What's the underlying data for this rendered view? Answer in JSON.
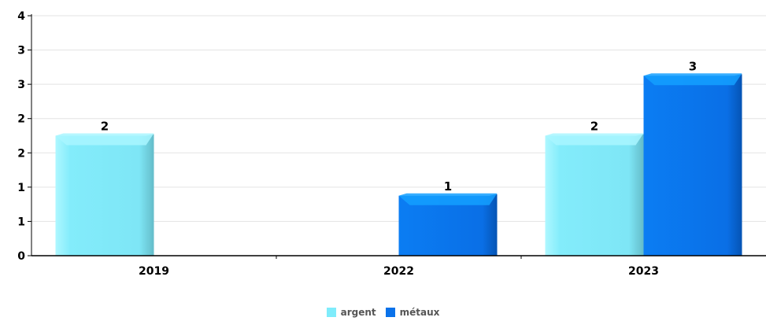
{
  "chart_data": {
    "type": "bar",
    "categories": [
      "2019",
      "2022",
      "2023"
    ],
    "series": [
      {
        "name": "argent",
        "values": [
          2,
          0,
          2
        ],
        "color": "#7fecfb"
      },
      {
        "name": "métaux",
        "values": [
          0,
          1,
          3
        ],
        "color": "#0a72ea"
      }
    ],
    "ylim": [
      0,
      4
    ],
    "y_ticks": [
      "0",
      "1",
      "1",
      "2",
      "2",
      "3",
      "3",
      "4"
    ],
    "data_labels": [
      {
        "category": "2019",
        "series": "argent",
        "text": "2"
      },
      {
        "category": "2022",
        "series": "métaux",
        "text": "1"
      },
      {
        "category": "2023",
        "series": "argent",
        "text": "2"
      },
      {
        "category": "2023",
        "series": "métaux",
        "text": "3"
      }
    ],
    "grid": true,
    "legend_position": "bottom-center"
  }
}
